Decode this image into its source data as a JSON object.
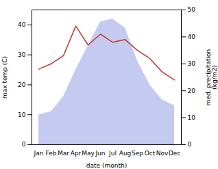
{
  "chart_data": {
    "type": "combo",
    "categories": [
      "Jan",
      "Feb",
      "Mar",
      "Apr",
      "May",
      "Jun",
      "Jul",
      "Aug",
      "Sep",
      "Oct",
      "Nov",
      "Dec"
    ],
    "series": [
      {
        "type": "area",
        "color": "#c5caf0",
        "values": [
          10,
          11,
          16,
          25,
          33,
          41,
          42,
          39,
          28,
          20,
          15,
          13
        ]
      },
      {
        "type": "line",
        "color": "#c0392b",
        "axis": "y2",
        "values": [
          28,
          30,
          33,
          44,
          37,
          41,
          38,
          39,
          35,
          32,
          27,
          24
        ]
      }
    ],
    "xlabel": "date (month)",
    "ylabel": "max temp (C)",
    "y2label": "med. precipitation\n(kg/m2)",
    "ylim": [
      0,
      45
    ],
    "yticks": [
      0,
      10,
      20,
      30,
      40
    ],
    "y2lim": [
      0,
      50
    ],
    "y2ticks": [
      0,
      10,
      20,
      30,
      40,
      50
    ]
  }
}
